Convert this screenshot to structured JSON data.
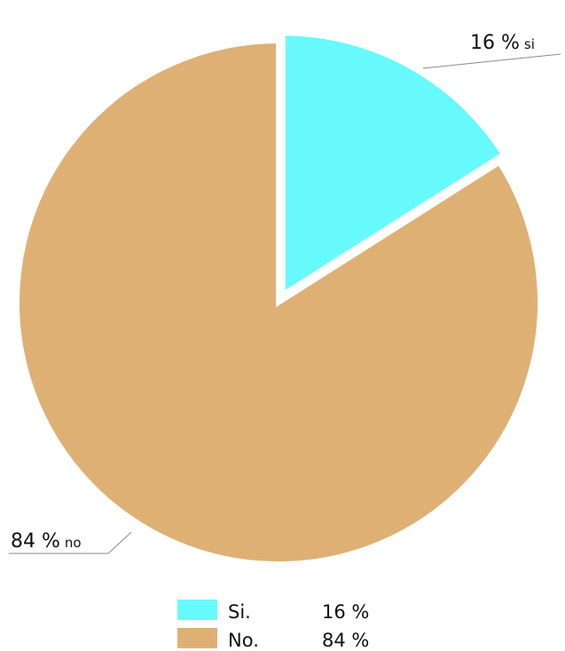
{
  "chart_data": {
    "type": "pie",
    "categories": [
      "Si.",
      "No."
    ],
    "values": [
      16,
      84
    ],
    "value_labels": [
      "16 %",
      "84 %"
    ],
    "colors": [
      "#66fafd",
      "#deb074"
    ],
    "exploded": [
      "Si."
    ],
    "slice_labels": [
      {
        "value": "16 %",
        "tag": "si"
      },
      {
        "value": "84 %",
        "tag": "no"
      }
    ],
    "legend": {
      "position": "bottom",
      "entries": [
        {
          "label": "Si.",
          "value": "16 %"
        },
        {
          "label": "No.",
          "value": "84 %"
        }
      ]
    }
  }
}
